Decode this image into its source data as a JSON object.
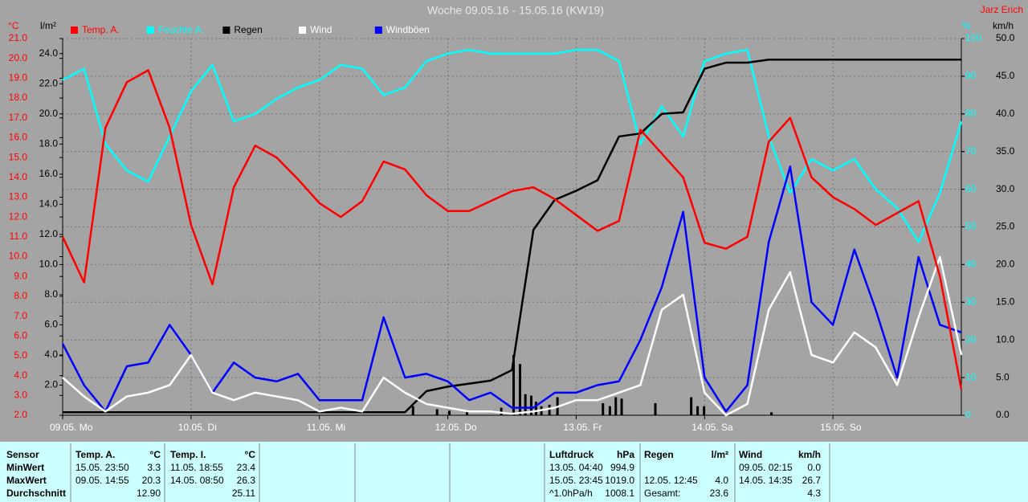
{
  "chart_data": {
    "type": "line",
    "title": "Woche 09.05.16 - 15.05.16 (KW19)",
    "author": "Jarz Erich",
    "xlim": [
      0,
      168
    ],
    "xticks": [
      {
        "value": 0,
        "label": "09.05.  Mo"
      },
      {
        "value": 24,
        "label": "10.05.  Di"
      },
      {
        "value": 48,
        "label": "11.05.  Mi"
      },
      {
        "value": 72,
        "label": "12.05.  Do"
      },
      {
        "value": 96,
        "label": "13.05.  Fr"
      },
      {
        "value": 120,
        "label": "14.05.  Sa"
      },
      {
        "value": 144,
        "label": "15.05.  So"
      }
    ],
    "grid": true,
    "axes": {
      "temp": {
        "label": "°C",
        "color": "#ff0000",
        "lim": [
          2,
          21
        ],
        "ticks": [
          {
            "value": 2,
            "label": "2.0"
          },
          {
            "value": 3,
            "label": "3.0"
          },
          {
            "value": 4,
            "label": "4.0"
          },
          {
            "value": 5,
            "label": "5.0"
          },
          {
            "value": 6,
            "label": "6.0"
          },
          {
            "value": 7,
            "label": "7.0"
          },
          {
            "value": 8,
            "label": "8.0"
          },
          {
            "value": 9,
            "label": "9.0"
          },
          {
            "value": 10,
            "label": "10.0"
          },
          {
            "value": 11,
            "label": "11.0"
          },
          {
            "value": 12,
            "label": "12.0"
          },
          {
            "value": 13,
            "label": "13.0"
          },
          {
            "value": 14,
            "label": "14.0"
          },
          {
            "value": 15,
            "label": "15.0"
          },
          {
            "value": 16,
            "label": "16.0"
          },
          {
            "value": 17,
            "label": "17.0"
          },
          {
            "value": 18,
            "label": "18.0"
          },
          {
            "value": 19,
            "label": "19.0"
          },
          {
            "value": 20,
            "label": "20.0"
          },
          {
            "value": 21,
            "label": "21.0"
          }
        ]
      },
      "rain": {
        "label": "l/m²",
        "color": "#000000",
        "lim": [
          0,
          25
        ],
        "ticks": [
          {
            "value": 2,
            "label": "2.0"
          },
          {
            "value": 4,
            "label": "4.0"
          },
          {
            "value": 6,
            "label": "6.0"
          },
          {
            "value": 8,
            "label": "8.0"
          },
          {
            "value": 10,
            "label": "10.0"
          },
          {
            "value": 12,
            "label": "12.0"
          },
          {
            "value": 14,
            "label": "14.0"
          },
          {
            "value": 16,
            "label": "16.0"
          },
          {
            "value": 18,
            "label": "18.0"
          },
          {
            "value": 20,
            "label": "20.0"
          },
          {
            "value": 22,
            "label": "22.0"
          },
          {
            "value": 24,
            "label": "24.0"
          }
        ]
      },
      "humidity": {
        "label": "%",
        "color": "#00ffff",
        "lim": [
          0,
          100
        ],
        "ticks": [
          0,
          10,
          20,
          30,
          40,
          50,
          60,
          70,
          80,
          90,
          100
        ]
      },
      "wind": {
        "label": "km/h",
        "color": "#000000",
        "lim": [
          0,
          50
        ],
        "ticks": [
          {
            "value": 0,
            "label": "0.0"
          },
          {
            "value": 5,
            "label": "5.0"
          },
          {
            "value": 10,
            "label": "10.0"
          },
          {
            "value": 15,
            "label": "15.0"
          },
          {
            "value": 20,
            "label": "20.0"
          },
          {
            "value": 25,
            "label": "25.0"
          },
          {
            "value": 30,
            "label": "30.0"
          },
          {
            "value": 35,
            "label": "35.0"
          },
          {
            "value": 40,
            "label": "40.0"
          },
          {
            "value": 45,
            "label": "45.0"
          },
          {
            "value": 50,
            "label": "50.0"
          }
        ]
      }
    },
    "x": [
      0,
      4,
      8,
      12,
      16,
      20,
      24,
      28,
      32,
      36,
      40,
      44,
      48,
      52,
      56,
      60,
      64,
      68,
      72,
      76,
      80,
      84,
      88,
      92,
      96,
      100,
      104,
      108,
      112,
      116,
      120,
      124,
      128,
      132,
      136,
      140,
      144,
      148,
      152,
      156,
      160,
      164,
      168
    ],
    "series": [
      {
        "name": "Temp. A.",
        "color": "#ff0000",
        "axis": "temp",
        "values": [
          11.0,
          8.7,
          16.5,
          18.8,
          19.4,
          16.5,
          11.6,
          8.6,
          13.5,
          15.6,
          15.0,
          13.9,
          12.7,
          12.0,
          12.8,
          14.8,
          14.4,
          13.1,
          12.3,
          12.3,
          12.8,
          13.3,
          13.5,
          12.9,
          12.1,
          11.3,
          11.8,
          16.4,
          15.2,
          14.0,
          10.7,
          10.4,
          11.0,
          15.8,
          17.0,
          14.0,
          13.0,
          12.4,
          11.6,
          12.2,
          12.8,
          9.0,
          3.3
        ]
      },
      {
        "name": "Feuchte A.",
        "color": "#00ffff",
        "axis": "humidity",
        "values": [
          89,
          92,
          72,
          65,
          62,
          74,
          86,
          93,
          78,
          80,
          84,
          87,
          89,
          93,
          92,
          85,
          87,
          94,
          96,
          97,
          96,
          96,
          96,
          96,
          97,
          97,
          94,
          72,
          82,
          74,
          94,
          96,
          97,
          74,
          59,
          68,
          65,
          68,
          60,
          55,
          46,
          59,
          78
        ]
      },
      {
        "name": "Regen",
        "color": "#000000",
        "axis": "rain",
        "values": [
          0.2,
          0.2,
          0.2,
          0.2,
          0.2,
          0.2,
          0.2,
          0.2,
          0.2,
          0.2,
          0.2,
          0.2,
          0.2,
          0.2,
          0.2,
          0.2,
          0.2,
          1.6,
          1.9,
          2.1,
          2.3,
          3.0,
          12.3,
          14.3,
          14.9,
          15.6,
          18.5,
          18.7,
          20.0,
          20.1,
          23.0,
          23.4,
          23.4,
          23.6,
          23.6,
          23.6,
          23.6,
          23.6,
          23.6,
          23.6,
          23.6,
          23.6,
          23.6
        ]
      },
      {
        "name": "Wind",
        "color": "#ffffff",
        "axis": "wind",
        "values": [
          5,
          2.5,
          0.5,
          2.5,
          3,
          4,
          8,
          3,
          2,
          3,
          2.5,
          2,
          0.5,
          1,
          0.5,
          5,
          3,
          1.5,
          1,
          0.5,
          0.5,
          0.2,
          0.5,
          1,
          2,
          2,
          3,
          4,
          14,
          16,
          3,
          0,
          1.5,
          14,
          19,
          8,
          7,
          11,
          9,
          4,
          13,
          21,
          8
        ]
      },
      {
        "name": "Windböen",
        "color": "#0000ff",
        "axis": "wind",
        "values": [
          9.5,
          4,
          0.5,
          6.5,
          7,
          12,
          8,
          3,
          7,
          5,
          4.5,
          5.5,
          2,
          2,
          2,
          13,
          5,
          5.5,
          4.5,
          2,
          3,
          1,
          1,
          3,
          3,
          4,
          4.5,
          10,
          17,
          27,
          5,
          0.5,
          4,
          23,
          33,
          15,
          12,
          22,
          14,
          5,
          21,
          12,
          11
        ]
      }
    ],
    "rain_bars": {
      "color": "#000000",
      "axis": "rain",
      "x": [
        65.5,
        70.0,
        72.3,
        75.6,
        82.0,
        84.3,
        85.5,
        86.5,
        87.6,
        88.5,
        89.5,
        91.0,
        92.5,
        101.0,
        102.3,
        103.4,
        104.5,
        110.8,
        117.5,
        118.7,
        119.9,
        132.5
      ],
      "values": [
        0.6,
        0.4,
        0.3,
        0.3,
        0.5,
        4.0,
        3.4,
        1.4,
        1.3,
        0.9,
        0.6,
        0.7,
        1.2,
        0.8,
        0.6,
        1.2,
        1.1,
        0.8,
        1.2,
        0.6,
        0.6,
        0.2
      ]
    }
  },
  "stats": {
    "row_labels": [
      "Sensor",
      "MinWert",
      "MaxWert",
      "Durchschnitt"
    ],
    "columns": [
      {
        "name": "Temp. A.",
        "unit": "°C",
        "rows": [
          {
            "time": "15.05.  23:50",
            "value": "3.3"
          },
          {
            "time": "09.05.  14:55",
            "value": "20.3"
          },
          {
            "value": "12.90"
          }
        ]
      },
      {
        "name": "Temp. I.",
        "unit": "°C",
        "rows": [
          {
            "time": "11.05.  18:55",
            "value": "23.4"
          },
          {
            "time": "14.05.  08:50",
            "value": "26.3"
          },
          {
            "value": "25.11"
          }
        ]
      },
      {
        "name": "Luftdruck",
        "unit": "hPa",
        "rows": [
          {
            "time": "13.05.  04:40",
            "value": "994.9"
          },
          {
            "time": "15.05.  23:45",
            "value": "1019.0"
          },
          {
            "time": "^1.0hPa/h",
            "value": "1008.1"
          }
        ]
      },
      {
        "name": "Regen",
        "unit": "l/m²",
        "rows": [
          null,
          {
            "time": "12.05.  12:45",
            "value": "4.0"
          },
          {
            "time": "Gesamt:",
            "value": "23.6"
          }
        ]
      },
      {
        "name": "Wind",
        "unit": "km/h",
        "rows": [
          {
            "time": "09.05.  02:15",
            "value": "0.0"
          },
          {
            "time": "14.05.  14:35",
            "value": "26.7"
          },
          {
            "value": "4.3"
          }
        ]
      }
    ]
  }
}
